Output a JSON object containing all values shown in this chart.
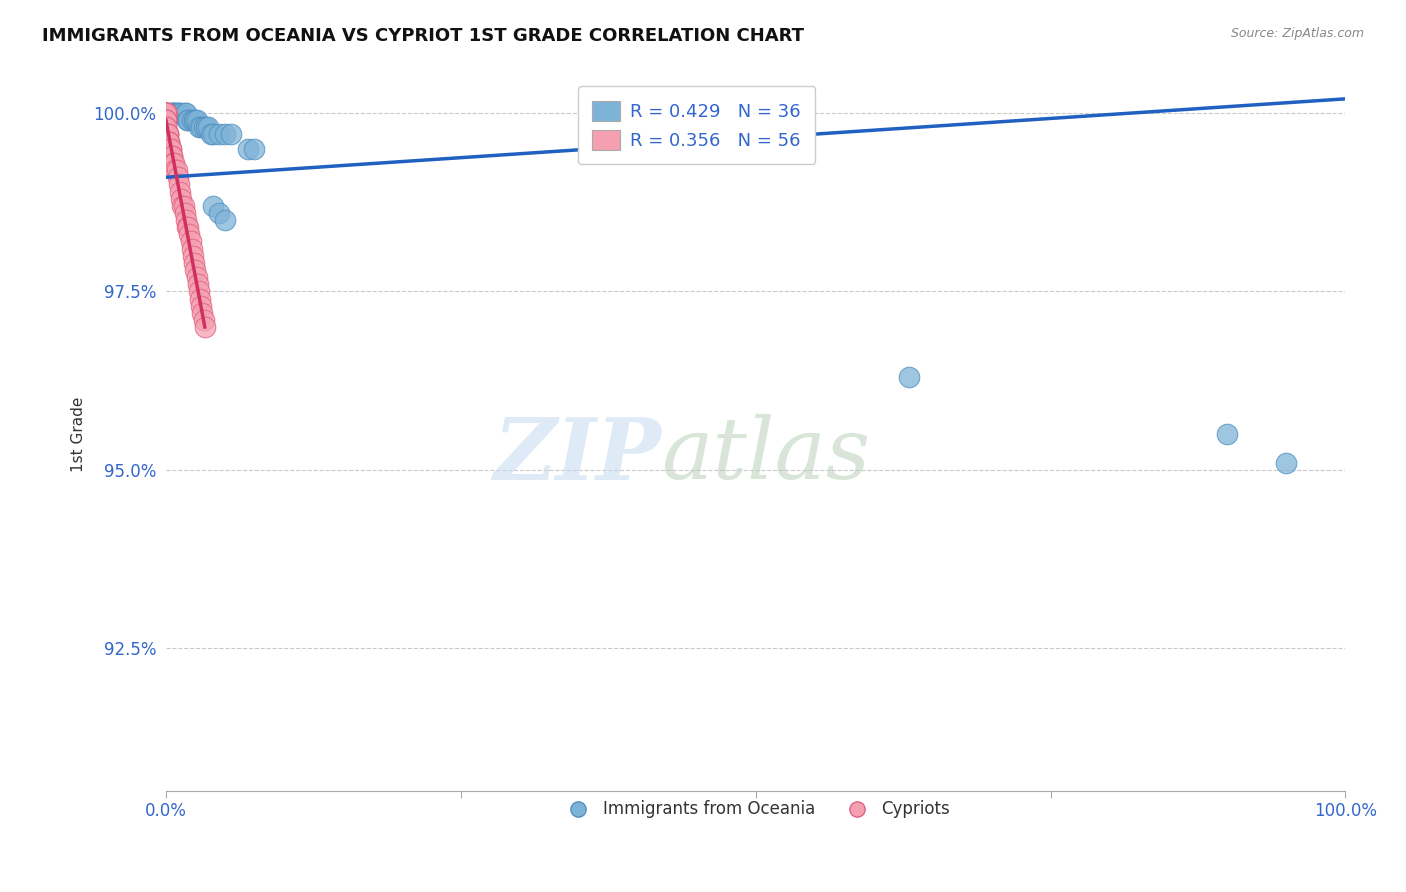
{
  "title": "IMMIGRANTS FROM OCEANIA VS CYPRIOT 1ST GRADE CORRELATION CHART",
  "source_text": "Source: ZipAtlas.com",
  "ylabel": "1st Grade",
  "xlim": [
    0.0,
    1.0
  ],
  "ylim": [
    0.905,
    1.005
  ],
  "yticks": [
    0.925,
    0.95,
    0.975,
    1.0
  ],
  "ytick_labels": [
    "92.5%",
    "95.0%",
    "97.5%",
    "100.0%"
  ],
  "legend_blue_R": "R = 0.429",
  "legend_blue_N": "N = 36",
  "legend_pink_R": "R = 0.356",
  "legend_pink_N": "N = 56",
  "blue_color": "#7EB3D8",
  "pink_color": "#F4A0B0",
  "blue_edge_color": "#5090C0",
  "pink_edge_color": "#E06080",
  "blue_line_color": "#2060C0",
  "pink_line_color": "#D03060",
  "blue_points_x": [
    0.003,
    0.004,
    0.005,
    0.006,
    0.007,
    0.008,
    0.009,
    0.01,
    0.012,
    0.013,
    0.016,
    0.017,
    0.018,
    0.019,
    0.022,
    0.024,
    0.025,
    0.026,
    0.028,
    0.03,
    0.032,
    0.034,
    0.036,
    0.038,
    0.04,
    0.045,
    0.05,
    0.055,
    0.07,
    0.075,
    0.04,
    0.045,
    0.05,
    0.63,
    0.9,
    0.95
  ],
  "blue_points_y": [
    1.0,
    1.0,
    1.0,
    1.0,
    1.0,
    1.0,
    1.0,
    1.0,
    1.0,
    1.0,
    1.0,
    1.0,
    0.999,
    0.999,
    0.999,
    0.999,
    0.999,
    0.999,
    0.998,
    0.998,
    0.998,
    0.998,
    0.998,
    0.997,
    0.997,
    0.997,
    0.997,
    0.997,
    0.995,
    0.995,
    0.987,
    0.986,
    0.985,
    0.963,
    0.955,
    0.951
  ],
  "pink_points_x": [
    0.0,
    0.0,
    0.0,
    0.0,
    0.0,
    0.0,
    0.0,
    0.0,
    0.0,
    0.0,
    0.0,
    0.0,
    0.0,
    0.0,
    0.0,
    0.0,
    0.0,
    0.0,
    0.002,
    0.002,
    0.002,
    0.003,
    0.003,
    0.003,
    0.004,
    0.004,
    0.005,
    0.005,
    0.006,
    0.007,
    0.008,
    0.009,
    0.01,
    0.011,
    0.012,
    0.013,
    0.014,
    0.015,
    0.016,
    0.017,
    0.018,
    0.019,
    0.02,
    0.021,
    0.022,
    0.023,
    0.024,
    0.025,
    0.026,
    0.027,
    0.028,
    0.029,
    0.03,
    0.031,
    0.032,
    0.033
  ],
  "pink_points_y": [
    1.0,
    1.0,
    1.0,
    1.0,
    1.0,
    1.0,
    1.0,
    1.0,
    1.0,
    1.0,
    0.999,
    0.999,
    0.999,
    0.999,
    0.998,
    0.998,
    0.997,
    0.997,
    0.997,
    0.997,
    0.997,
    0.996,
    0.996,
    0.996,
    0.995,
    0.995,
    0.994,
    0.994,
    0.993,
    0.993,
    0.992,
    0.992,
    0.991,
    0.99,
    0.989,
    0.988,
    0.987,
    0.987,
    0.986,
    0.985,
    0.984,
    0.984,
    0.983,
    0.982,
    0.981,
    0.98,
    0.979,
    0.978,
    0.977,
    0.976,
    0.975,
    0.974,
    0.973,
    0.972,
    0.971,
    0.97
  ],
  "blue_line_x0": 0.0,
  "blue_line_x1": 1.0,
  "blue_line_y0": 0.991,
  "blue_line_y1": 1.002,
  "pink_line_x0": 0.0,
  "pink_line_x1": 0.033,
  "pink_line_y0": 0.999,
  "pink_line_y1": 0.97
}
